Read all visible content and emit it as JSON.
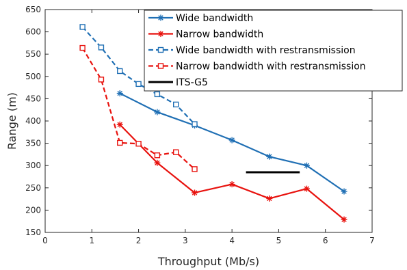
{
  "chart_data": {
    "type": "line",
    "xlabel": "Throughput (Mb/s)",
    "ylabel": "Range (m)",
    "xlim": [
      0,
      7
    ],
    "ylim": [
      150,
      650
    ],
    "xticks": [
      0,
      1,
      2,
      3,
      4,
      5,
      6,
      7
    ],
    "yticks": [
      150,
      200,
      250,
      300,
      350,
      400,
      450,
      500,
      550,
      600,
      650
    ],
    "grid": false,
    "legend_position": "top-right",
    "series": [
      {
        "name": "Wide bandwidth",
        "color": "#1f6fb4",
        "line_style": "solid",
        "marker": "asterisk",
        "x": [
          1.6,
          2.4,
          3.2,
          4.0,
          4.8,
          5.6,
          6.4
        ],
        "y": [
          462,
          420,
          390,
          357,
          320,
          300,
          242
        ]
      },
      {
        "name": "Narrow bandwidth",
        "color": "#e8120e",
        "line_style": "solid",
        "marker": "asterisk",
        "x": [
          1.6,
          2.4,
          3.2,
          4.0,
          4.8,
          5.6,
          6.4
        ],
        "y": [
          392,
          306,
          239,
          258,
          226,
          248,
          179
        ]
      },
      {
        "name": "Wide bandwidth with restransmission",
        "color": "#1f6fb4",
        "line_style": "dashed",
        "marker": "square",
        "x": [
          0.8,
          1.2,
          1.6,
          2.0,
          2.4,
          2.8,
          3.2
        ],
        "y": [
          611,
          565,
          512,
          483,
          460,
          437,
          393
        ]
      },
      {
        "name": "Narrow bandwidth with restransmission",
        "color": "#e8120e",
        "line_style": "dashed",
        "marker": "square",
        "x": [
          0.8,
          1.2,
          1.6,
          2.0,
          2.4,
          2.8,
          3.2
        ],
        "y": [
          564,
          493,
          351,
          349,
          323,
          330,
          292
        ]
      },
      {
        "name": "ITS-G5",
        "color": "#000000",
        "line_style": "solid",
        "marker": "none",
        "x": [
          4.3,
          5.45
        ],
        "y": [
          285,
          285
        ]
      }
    ]
  }
}
